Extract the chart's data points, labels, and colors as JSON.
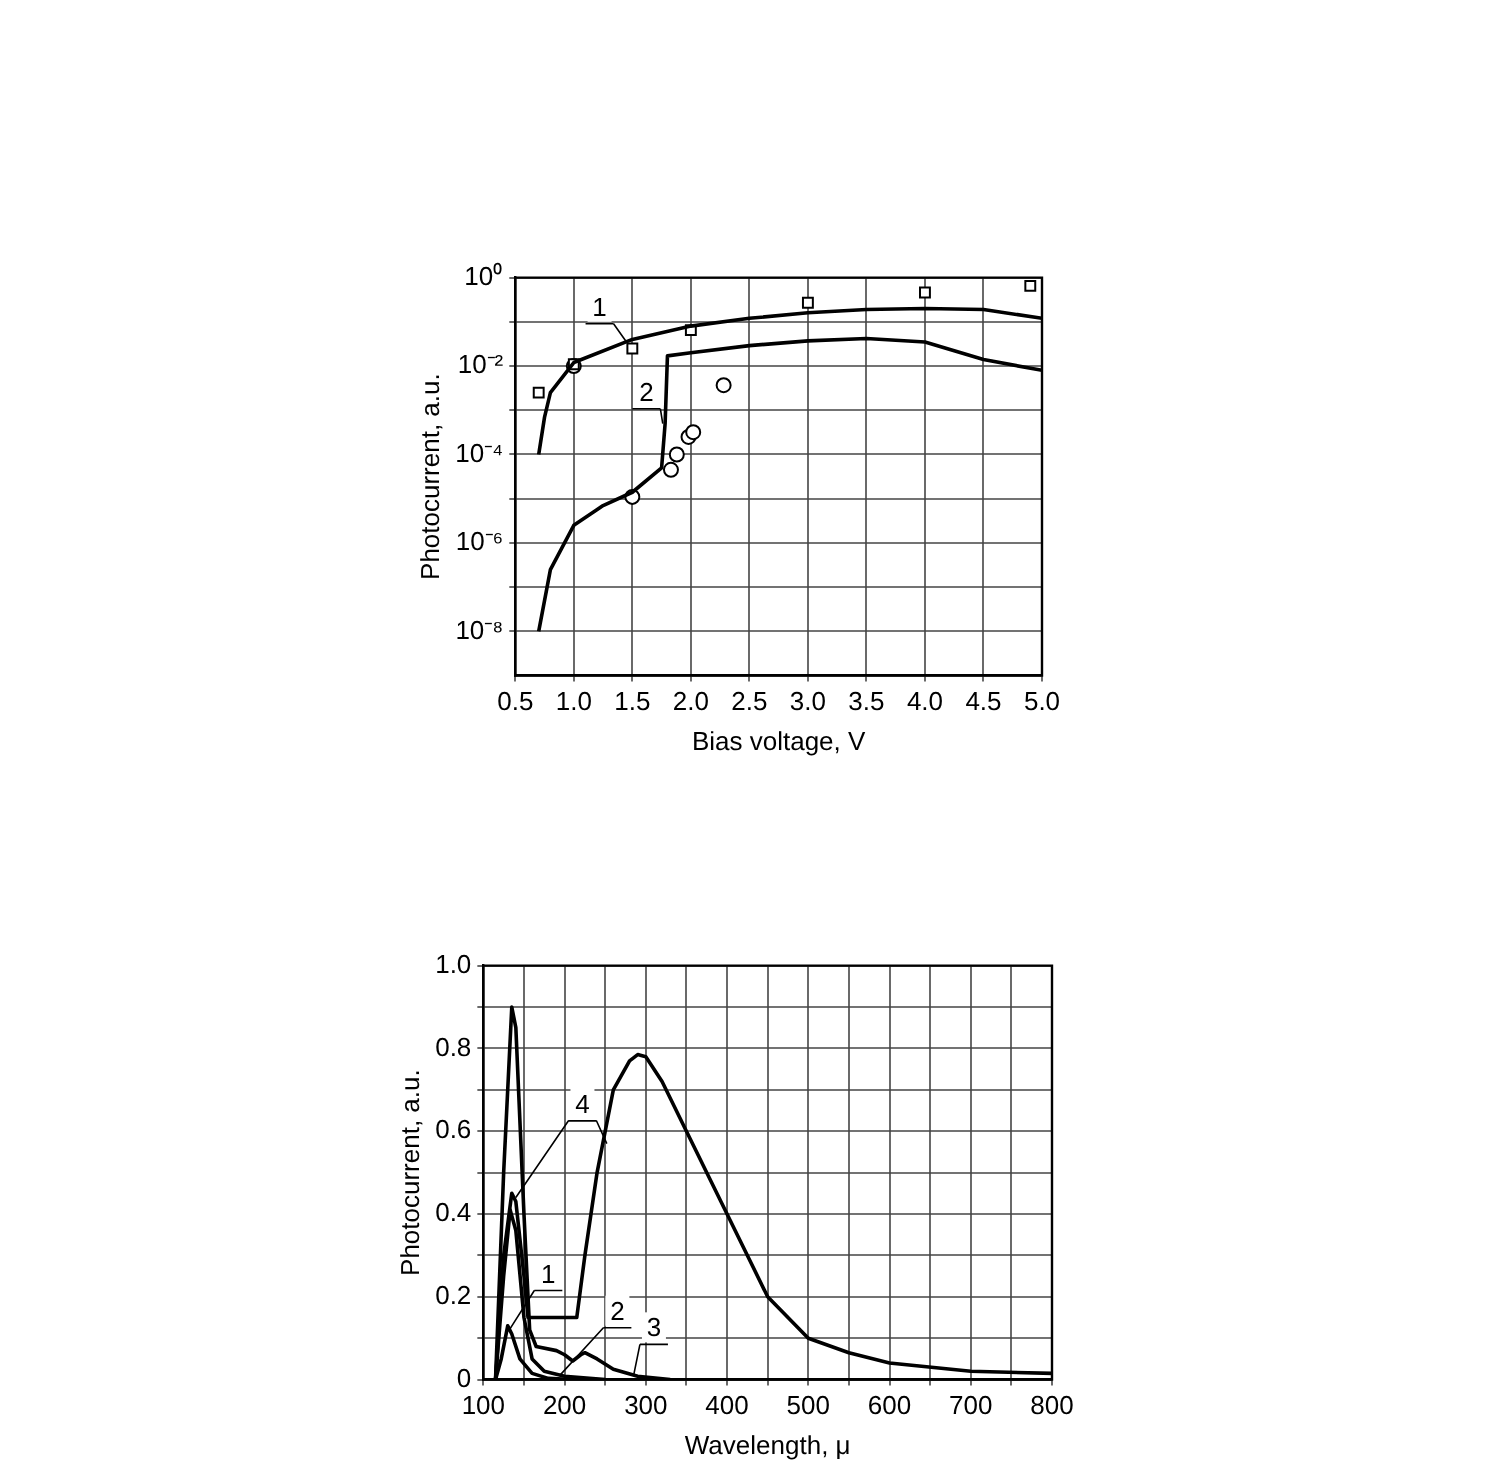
{
  "chart_data": [
    {
      "type": "line",
      "xlabel": "Bias voltage, V",
      "ylabel": "Photocurrent, a.u.",
      "log": "y",
      "grid": true,
      "legend": false,
      "xlim": [
        0.5,
        5.0
      ],
      "xticks": [
        {
          "value": 0.5,
          "label": "0.5"
        },
        {
          "value": 1,
          "label": "1.0"
        },
        {
          "value": 1.5,
          "label": "1.5"
        },
        {
          "value": 2,
          "label": "2.0"
        },
        {
          "value": 2.5,
          "label": "2.5"
        },
        {
          "value": 3,
          "label": "3.0"
        },
        {
          "value": 3.5,
          "label": "3.5"
        },
        {
          "value": 4,
          "label": "4.0"
        },
        {
          "value": 4.5,
          "label": "4.5"
        },
        {
          "value": 5,
          "label": "5.0"
        }
      ],
      "ylim": [
        1e-09,
        1
      ],
      "yticks": [
        {
          "value": 1,
          "label": "10⁰"
        },
        {
          "value": 0.1,
          "label": null
        },
        {
          "value": 0.01,
          "label": "10⁻²"
        },
        {
          "value": 0.001,
          "label": null
        },
        {
          "value": 0.0001,
          "label": "10⁻⁴"
        },
        {
          "value": 1e-05,
          "label": null
        },
        {
          "value": 1e-06,
          "label": "10⁻⁶"
        },
        {
          "value": 1e-07,
          "label": null
        },
        {
          "value": 1e-08,
          "label": "10⁻⁸"
        }
      ],
      "series": [
        {
          "name": "1",
          "type": "line",
          "color": "#000000",
          "marker": "none",
          "x": [
            0.7,
            0.75,
            0.8,
            1.0,
            1.5,
            2.0,
            2.5,
            3.0,
            3.5,
            4.0,
            4.5,
            5.0
          ],
          "values": [
            0.0001,
            0.0007,
            0.0025,
            0.012,
            0.04,
            0.08,
            0.12,
            0.16,
            0.19,
            0.2,
            0.19,
            0.12
          ]
        },
        {
          "name": "2",
          "type": "line",
          "color": "#000000",
          "marker": "none",
          "x": [
            0.7,
            0.8,
            1.0,
            1.25,
            1.5,
            1.75,
            1.78,
            1.8,
            2.0,
            2.5,
            3.0,
            3.5,
            4.0,
            4.5,
            5.0
          ],
          "values": [
            1e-08,
            2.5e-07,
            2.5e-06,
            7e-06,
            1.4e-05,
            5e-05,
            0.0005,
            0.017,
            0.02,
            0.029,
            0.037,
            0.042,
            0.035,
            0.014,
            0.008
          ]
        },
        {
          "type": "scatter",
          "color": "#000000",
          "marker": "square",
          "x": [
            0.7,
            1.0,
            1.5,
            2.0,
            3.0,
            4.0,
            4.9
          ],
          "values": [
            0.0025,
            0.011,
            0.025,
            0.065,
            0.27,
            0.46,
            0.65
          ]
        },
        {
          "type": "scatter",
          "color": "#000000",
          "marker": "circle",
          "x": [
            1.0,
            1.5,
            1.83,
            1.88,
            1.98,
            2.02,
            2.28
          ],
          "values": [
            0.01,
            1.1e-05,
            4.5e-05,
            0.0001,
            0.00025,
            0.00032,
            0.0037
          ]
        }
      ]
    },
    {
      "type": "line",
      "xlabel": "Wavelength, μ",
      "ylabel": "Photocurrent, a.u.",
      "grid": true,
      "legend": false,
      "xlim": [
        100,
        800
      ],
      "xticks": [
        100,
        {
          "value": 150,
          "label": null
        },
        200,
        {
          "value": 250,
          "label": null
        },
        300,
        {
          "value": 350,
          "label": null
        },
        400,
        {
          "value": 450,
          "label": null
        },
        500,
        {
          "value": 550,
          "label": null
        },
        600,
        {
          "value": 650,
          "label": null
        },
        700,
        {
          "value": 750,
          "label": null
        },
        800
      ],
      "ylim": [
        0,
        1.0
      ],
      "yticks": [
        0,
        {
          "value": 0.1,
          "label": null
        },
        {
          "value": 0.2,
          "label": "0.2"
        },
        {
          "value": 0.3,
          "label": null
        },
        {
          "value": 0.4,
          "label": "0.4"
        },
        {
          "value": 0.5,
          "label": null
        },
        {
          "value": 0.6,
          "label": "0.6"
        },
        {
          "value": 0.7,
          "label": null
        },
        {
          "value": 0.8,
          "label": "0.8"
        },
        {
          "value": 0.9,
          "label": null
        },
        {
          "value": 1.0,
          "label": "1.0"
        }
      ],
      "series": [
        {
          "name": "1",
          "color": "#000000",
          "marker": "none",
          "x": [
            115,
            122,
            130,
            135,
            145,
            160,
            180,
            210
          ],
          "values": [
            0,
            0.05,
            0.13,
            0.11,
            0.05,
            0.015,
            0.003,
            0
          ]
        },
        {
          "name": "2",
          "color": "#000000",
          "marker": "none",
          "x": [
            115,
            125,
            133,
            140,
            150,
            160,
            175,
            200,
            250
          ],
          "values": [
            0,
            0.25,
            0.41,
            0.36,
            0.15,
            0.05,
            0.02,
            0.008,
            0
          ]
        },
        {
          "name": "3",
          "color": "#000000",
          "marker": "none",
          "x": [
            115,
            125,
            135,
            140,
            150,
            157,
            165,
            190,
            200,
            210,
            220,
            225,
            240,
            260,
            290,
            330
          ],
          "values": [
            0,
            0.5,
            0.9,
            0.85,
            0.4,
            0.12,
            0.08,
            0.07,
            0.06,
            0.045,
            0.06,
            0.065,
            0.05,
            0.025,
            0.008,
            0
          ]
        },
        {
          "name": "4",
          "color": "#000000",
          "marker": "none",
          "x": [
            115,
            125,
            135,
            140,
            150,
            155,
            215,
            225,
            240,
            260,
            280,
            290,
            300,
            320,
            350,
            400,
            450,
            500,
            550,
            600,
            700,
            800
          ],
          "values": [
            0,
            0.3,
            0.45,
            0.43,
            0.25,
            0.15,
            0.15,
            0.3,
            0.5,
            0.7,
            0.77,
            0.785,
            0.78,
            0.72,
            0.6,
            0.4,
            0.2,
            0.1,
            0.065,
            0.04,
            0.02,
            0.015
          ]
        }
      ]
    }
  ]
}
